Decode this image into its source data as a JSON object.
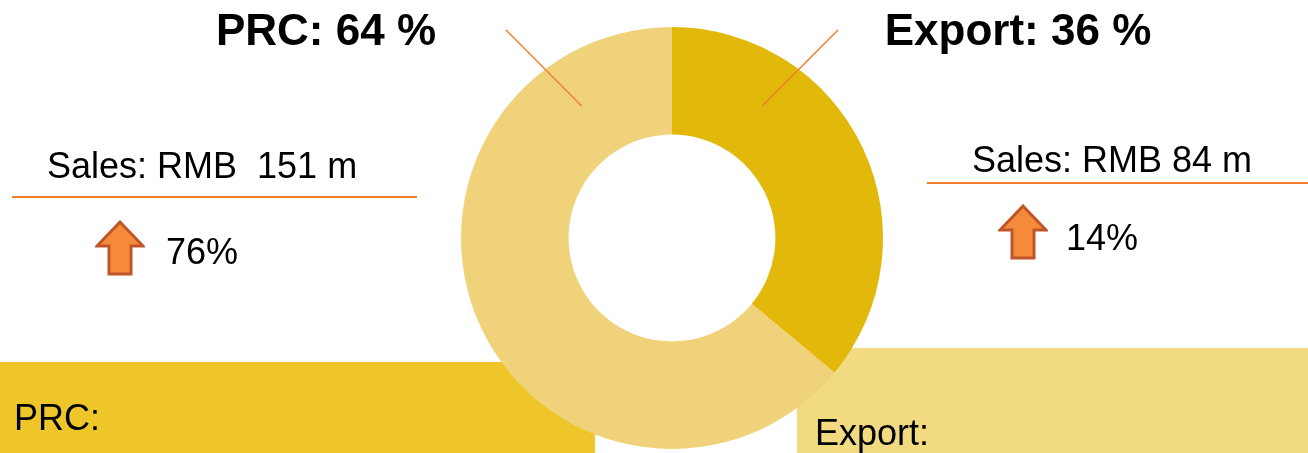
{
  "chart_data": {
    "type": "donut",
    "categories": [
      null,
      null
    ],
    "values": [
      36,
      64
    ],
    "colors": [
      "#e2b90a",
      "#f0d27a"
    ],
    "value_labels": [
      "Export: 36 %",
      "PRC: 64 %"
    ],
    "annotations": [
      "Sales: RMB  151 m",
      "76%",
      "Sales: RMB 84 m",
      "14%",
      "PRC:",
      "Export:"
    ],
    "legend": false
  }
}
